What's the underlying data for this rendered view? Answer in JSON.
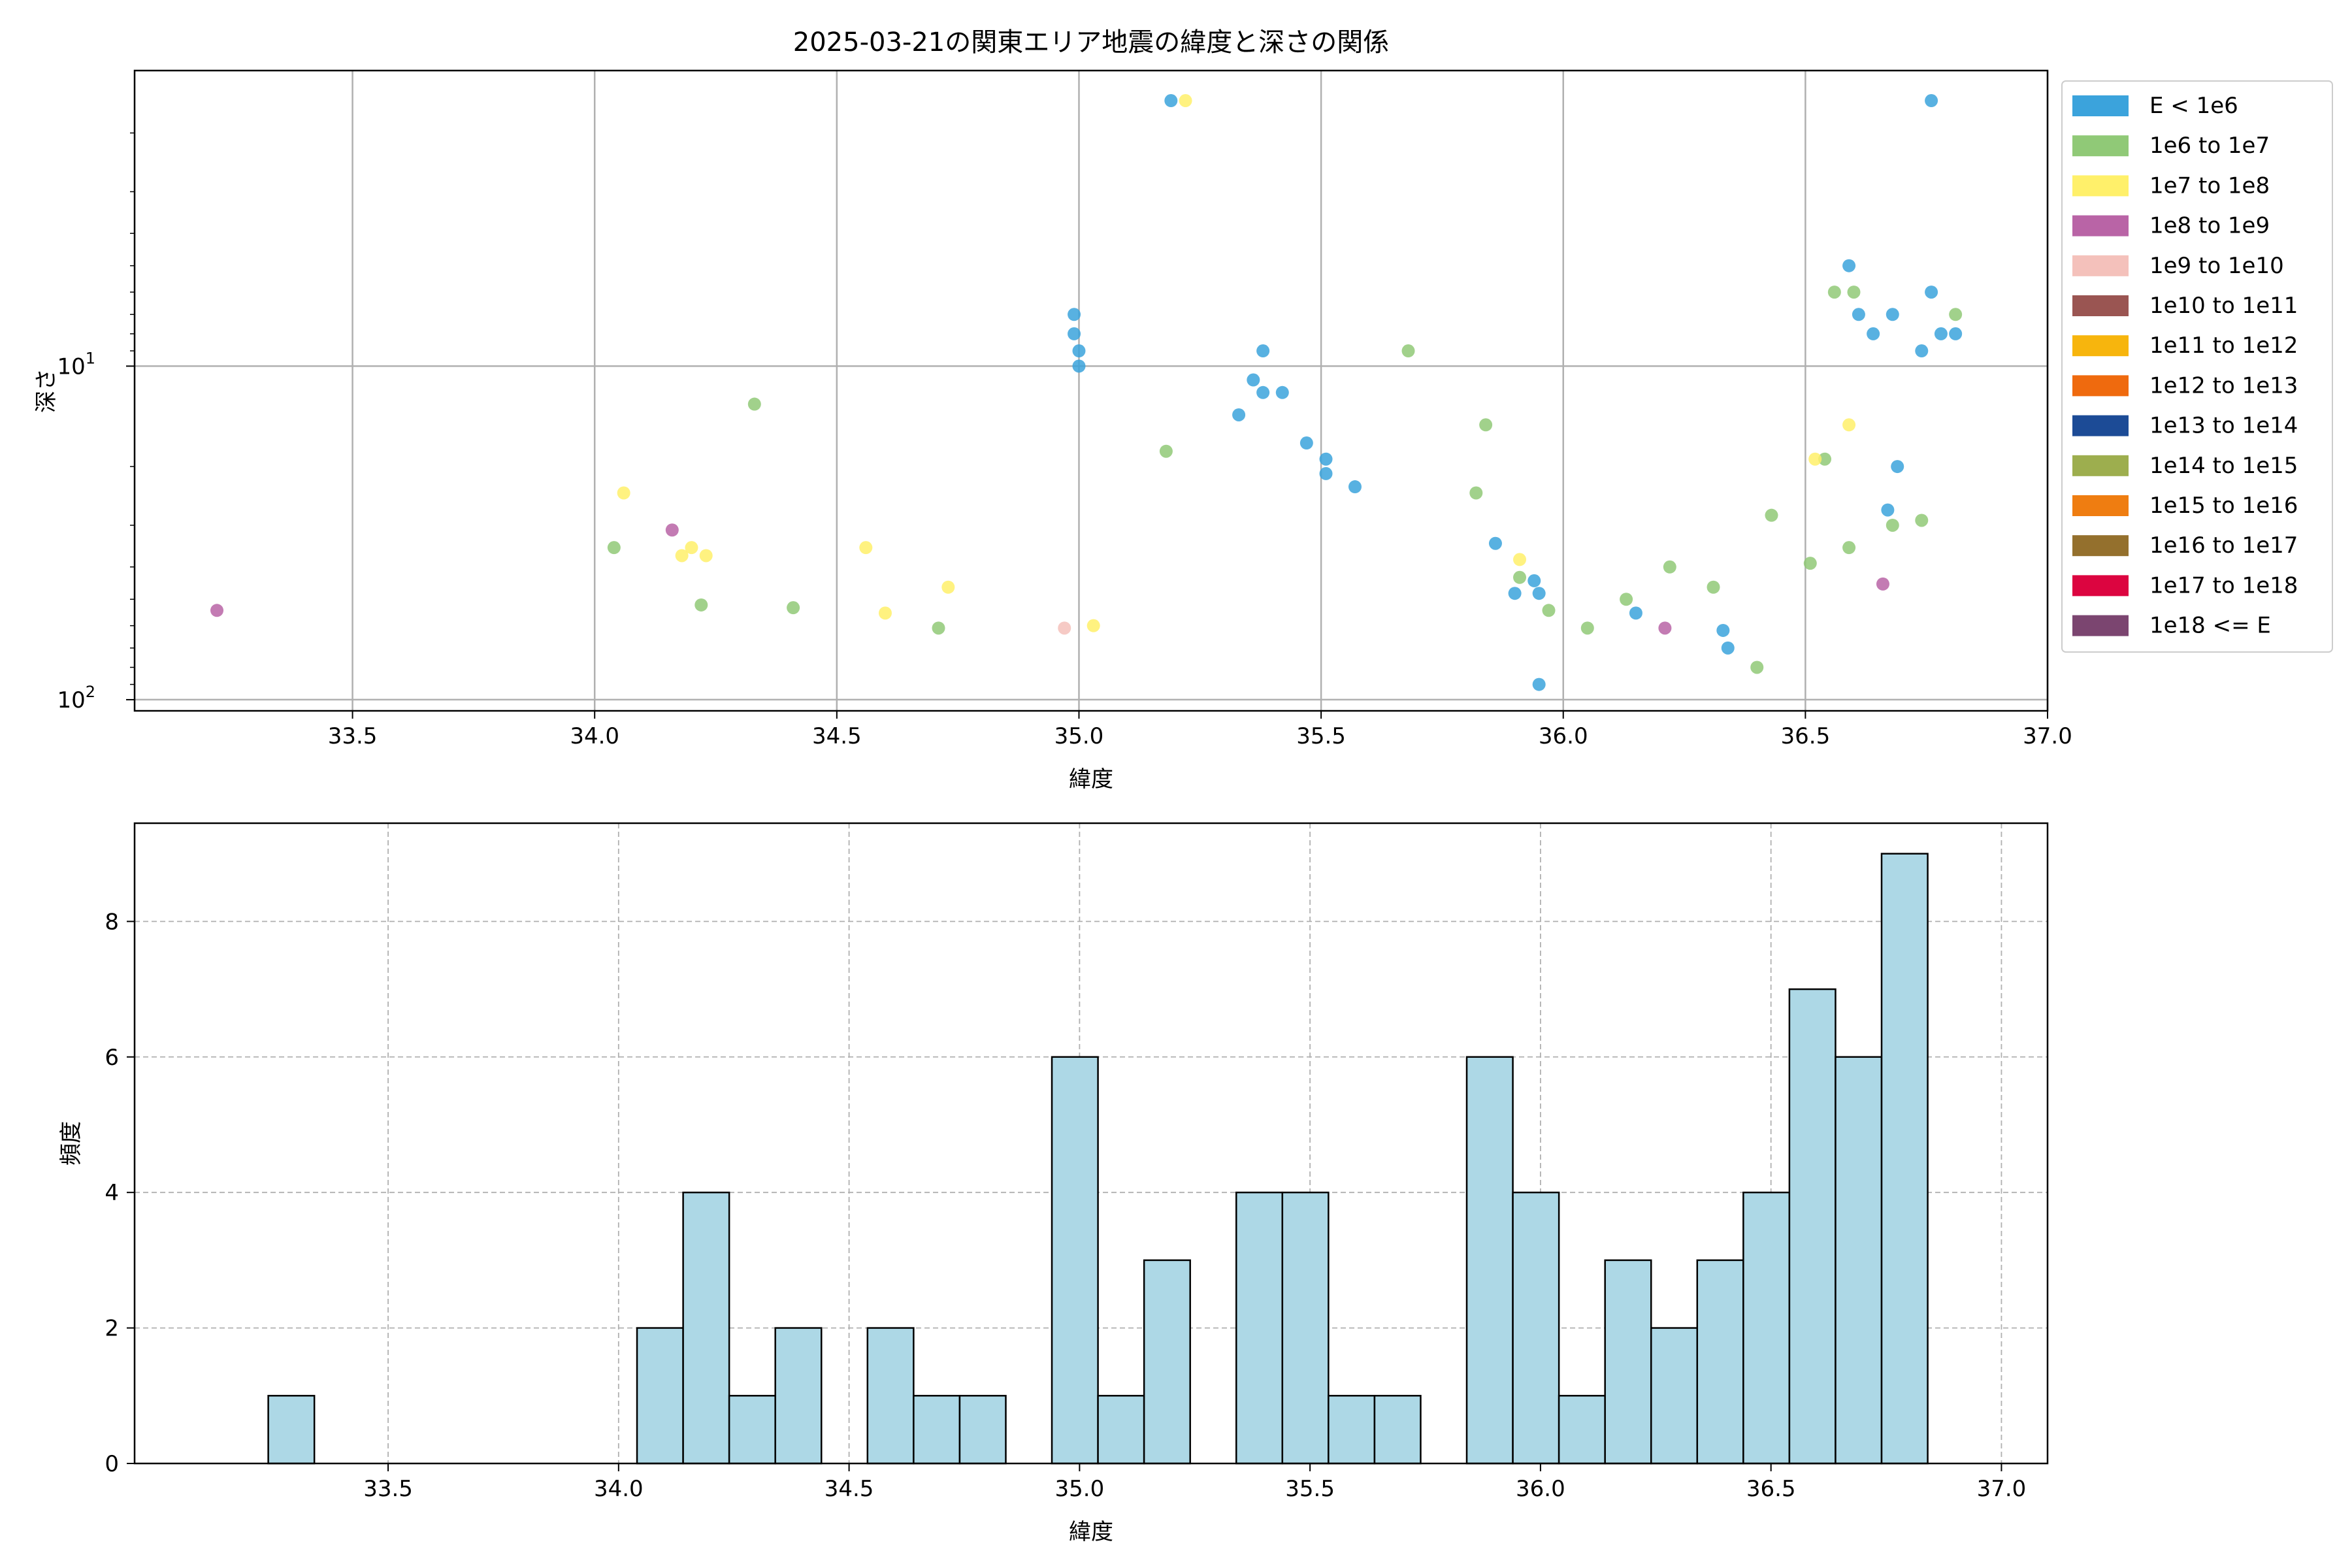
{
  "figure": {
    "title": "2025-03-21の関東エリア地震の緯度と深さの関係"
  },
  "chart_data": [
    {
      "type": "scatter",
      "title": "2025-03-21の関東エリア地震の緯度と深さの関係",
      "xlabel": "緯度",
      "ylabel": "深さ",
      "xlim": [
        33.05,
        37.0
      ],
      "ylim_log_inverted": [
        1.3,
        108
      ],
      "y_scale": "log",
      "y_inverted": true,
      "grid": true,
      "xticks": [
        "33.5",
        "34.0",
        "34.5",
        "35.0",
        "35.5",
        "36.0",
        "36.5",
        "37.0"
      ],
      "xtick_values": [
        33.5,
        34.0,
        34.5,
        35.0,
        35.5,
        36.0,
        36.5,
        37.0
      ],
      "yticks": [
        {
          "value": 10,
          "base": "10",
          "exp": "1"
        },
        {
          "value": 100,
          "base": "10",
          "exp": "2"
        }
      ],
      "legend_position": "outside-right",
      "legend": [
        {
          "label": "E < 1e6",
          "color": "#3ba3dc"
        },
        {
          "label": "1e6 to 1e7",
          "color": "#90c977"
        },
        {
          "label": "1e7 to 1e8",
          "color": "#fff06a"
        },
        {
          "label": "1e8 to 1e9",
          "color": "#b964a6"
        },
        {
          "label": "1e9 to 1e10",
          "color": "#f4c1bb"
        },
        {
          "label": "1e10 to 1e11",
          "color": "#9a5552"
        },
        {
          "label": "1e11 to 1e12",
          "color": "#f7b50d"
        },
        {
          "label": "1e12 to 1e13",
          "color": "#ef6a0e"
        },
        {
          "label": "1e13 to 1e14",
          "color": "#1c4b96"
        },
        {
          "label": "1e14 to 1e15",
          "color": "#9dae4e"
        },
        {
          "label": "1e15 to 1e16",
          "color": "#ef7d11"
        },
        {
          "label": "1e16 to 1e17",
          "color": "#94702d"
        },
        {
          "label": "1e17 to 1e18",
          "color": "#dc0540"
        },
        {
          "label": "1e18 <= E",
          "color": "#7b4570"
        }
      ],
      "series": [
        {
          "legend_index": 0,
          "points": [
            [
              35.19,
              1.6
            ],
            [
              34.99,
              7.0
            ],
            [
              34.99,
              8.0
            ],
            [
              35.0,
              9.0
            ],
            [
              35.0,
              10.0
            ],
            [
              35.33,
              14.0
            ],
            [
              35.36,
              11.0
            ],
            [
              35.38,
              9.0
            ],
            [
              35.38,
              12.0
            ],
            [
              35.42,
              12.0
            ],
            [
              35.47,
              17.0
            ],
            [
              35.51,
              19.0
            ],
            [
              35.51,
              21.0
            ],
            [
              35.57,
              23.0
            ],
            [
              35.86,
              34.0
            ],
            [
              35.9,
              48.0
            ],
            [
              35.94,
              44.0
            ],
            [
              35.95,
              48.0
            ],
            [
              36.15,
              55.0
            ],
            [
              36.33,
              62.0
            ],
            [
              36.34,
              70.0
            ],
            [
              35.95,
              90.0
            ],
            [
              36.59,
              5.0
            ],
            [
              36.61,
              7.0
            ],
            [
              36.64,
              8.0
            ],
            [
              36.68,
              7.0
            ],
            [
              36.69,
              20.0
            ],
            [
              36.67,
              27.0
            ],
            [
              36.74,
              9.0
            ],
            [
              36.76,
              1.6
            ],
            [
              36.76,
              6.0
            ],
            [
              36.78,
              8.0
            ],
            [
              36.81,
              8.0
            ]
          ]
        },
        {
          "legend_index": 1,
          "points": [
            [
              34.04,
              35.0
            ],
            [
              34.22,
              52.0
            ],
            [
              34.33,
              13.0
            ],
            [
              34.41,
              53.0
            ],
            [
              34.71,
              61.0
            ],
            [
              35.18,
              18.0
            ],
            [
              35.68,
              9.0
            ],
            [
              35.82,
              24.0
            ],
            [
              35.84,
              15.0
            ],
            [
              35.91,
              43.0
            ],
            [
              35.97,
              54.0
            ],
            [
              36.05,
              61.0
            ],
            [
              36.13,
              50.0
            ],
            [
              36.22,
              40.0
            ],
            [
              36.31,
              46.0
            ],
            [
              36.4,
              80.0
            ],
            [
              36.43,
              28.0
            ],
            [
              36.51,
              39.0
            ],
            [
              36.54,
              19.0
            ],
            [
              36.56,
              6.0
            ],
            [
              36.6,
              6.0
            ],
            [
              36.59,
              35.0
            ],
            [
              36.68,
              30.0
            ],
            [
              36.74,
              29.0
            ],
            [
              36.81,
              7.0
            ]
          ]
        },
        {
          "legend_index": 2,
          "points": [
            [
              34.06,
              24.0
            ],
            [
              34.18,
              37.0
            ],
            [
              34.2,
              35.0
            ],
            [
              34.23,
              37.0
            ],
            [
              34.56,
              35.0
            ],
            [
              34.6,
              55.0
            ],
            [
              34.73,
              46.0
            ],
            [
              35.03,
              60.0
            ],
            [
              35.22,
              1.6
            ],
            [
              35.91,
              38.0
            ],
            [
              36.52,
              19.0
            ],
            [
              36.59,
              15.0
            ]
          ]
        },
        {
          "legend_index": 3,
          "points": [
            [
              33.22,
              54.0
            ],
            [
              34.16,
              31.0
            ],
            [
              36.21,
              61.0
            ],
            [
              36.66,
              45.0
            ]
          ]
        },
        {
          "legend_index": 4,
          "points": [
            [
              34.97,
              61.0
            ]
          ]
        }
      ]
    },
    {
      "type": "bar",
      "title": "",
      "xlabel": "緯度",
      "ylabel": "頻度",
      "xlim": [
        32.95,
        37.1
      ],
      "ylim": [
        0,
        9.45
      ],
      "grid": true,
      "bar_color": "#add8e6",
      "xticks": [
        "33.5",
        "34.0",
        "34.5",
        "35.0",
        "35.5",
        "36.0",
        "36.5",
        "37.0"
      ],
      "xtick_values": [
        33.5,
        34.0,
        34.5,
        35.0,
        35.5,
        36.0,
        36.5,
        37.0
      ],
      "yticks": [
        "0",
        "2",
        "4",
        "6",
        "8"
      ],
      "ytick_values": [
        0,
        2,
        4,
        6,
        8
      ],
      "bin_edges": [
        33.14,
        33.24,
        33.34,
        33.44,
        33.54,
        33.64,
        33.74,
        33.84,
        33.94,
        34.04,
        34.14,
        34.24,
        34.34,
        34.44,
        34.54,
        34.64,
        34.74,
        34.84,
        34.94,
        35.04,
        35.14,
        35.24,
        35.34,
        35.44,
        35.54,
        35.64,
        35.74,
        35.84,
        35.94,
        36.04,
        36.14,
        36.24,
        36.34,
        36.44,
        36.54,
        36.64,
        36.74,
        36.84,
        36.94
      ],
      "values": [
        0,
        1,
        0,
        0,
        0,
        0,
        0,
        0,
        0,
        2,
        4,
        1,
        2,
        0,
        2,
        1,
        1,
        0,
        6,
        1,
        3,
        0,
        4,
        4,
        1,
        1,
        0,
        6,
        4,
        1,
        3,
        2,
        3,
        4,
        7,
        6,
        9,
        0
      ]
    }
  ]
}
